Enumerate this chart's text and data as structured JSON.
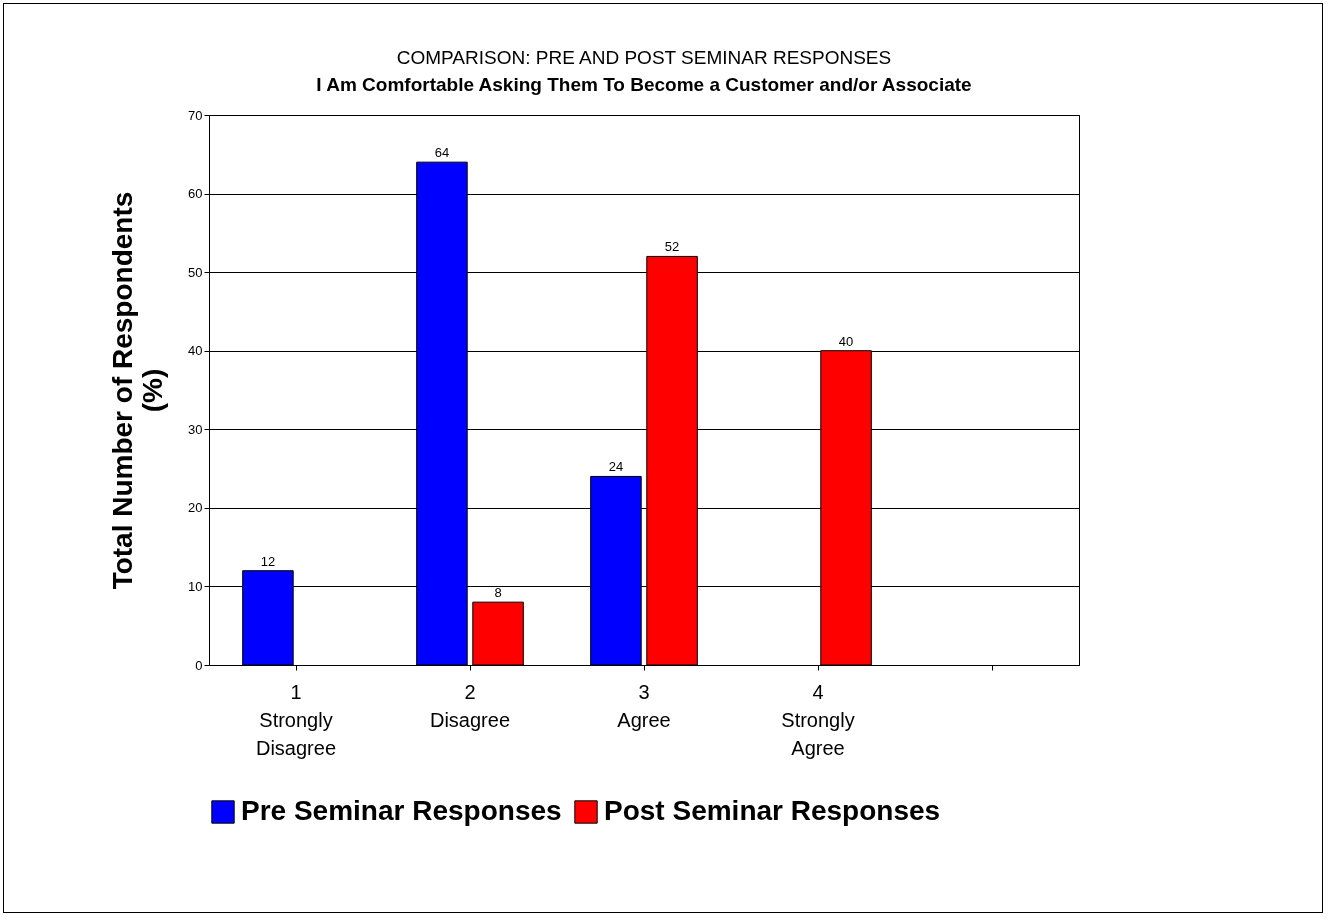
{
  "chart_data": {
    "type": "bar",
    "title": "COMPARISON: PRE AND POST SEMINAR RESPONSES",
    "subtitle": "I Am Comfortable Asking Them To Become a Customer and/or Associate",
    "ylabel": "Total Number of Respondents\n(%)",
    "categories": [
      "1\nStrongly\nDisagree",
      "2\nDisagree",
      "3\nAgree",
      "4\nStrongly\nAgree",
      null
    ],
    "series": [
      {
        "name": "Pre Seminar Responses",
        "color": "#0000ff",
        "values": [
          12,
          64,
          24,
          null,
          null
        ]
      },
      {
        "name": "Post Seminar Responses",
        "color": "#ff0000",
        "values": [
          null,
          8,
          52,
          40,
          null
        ]
      }
    ],
    "ylim": [
      0,
      70
    ],
    "yticks": [
      0,
      10,
      20,
      30,
      40,
      50,
      60,
      70
    ],
    "grid": "y",
    "legend": "bottom",
    "data_labels": true
  }
}
